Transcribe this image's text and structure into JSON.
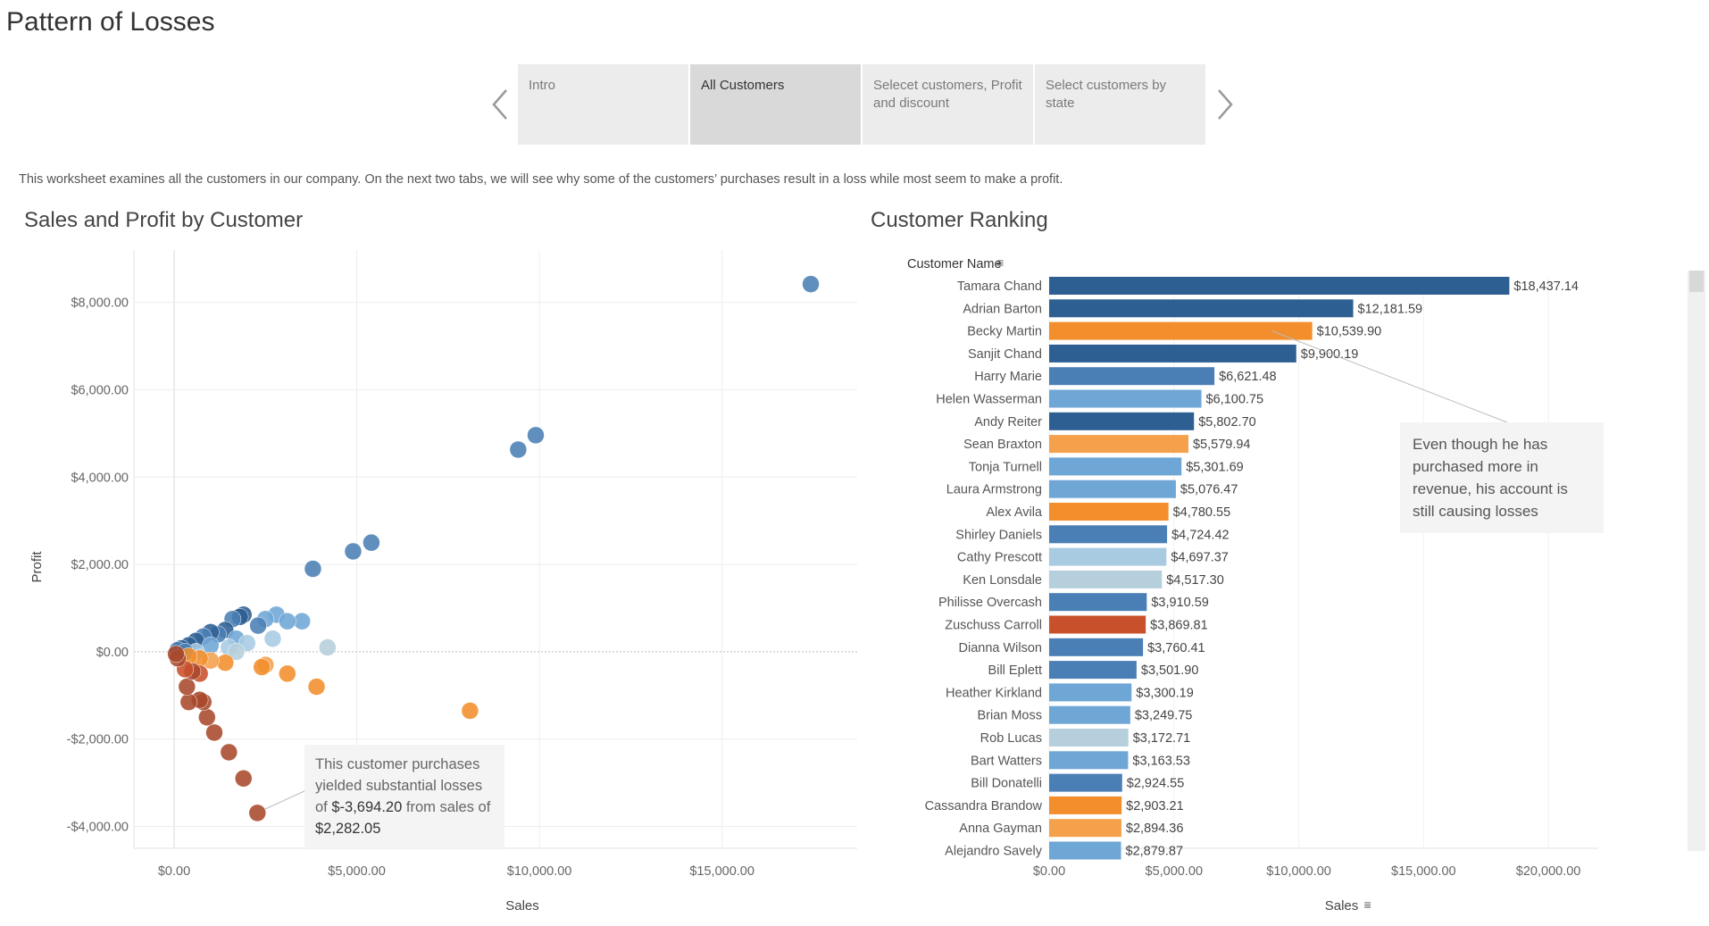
{
  "page": {
    "title": "Pattern of Losses",
    "description": "This worksheet examines all the customers in our company. On the next two tabs, we will see why some of the customers’ purchases result in a loss while most seem to make a profit."
  },
  "story": {
    "tabs": [
      {
        "label": "Intro"
      },
      {
        "label": "All Customers"
      },
      {
        "label": "Selecet customers, Profit and discount"
      },
      {
        "label": "Select customers by state"
      }
    ],
    "active_index": 1
  },
  "colors": {
    "blue_dark": "#2d5f93",
    "blue_mid": "#4a7fb5",
    "blue_light": "#6ea6d6",
    "blue_pale": "#a8cbe2",
    "grey_blue": "#b5cfdc",
    "orange": "#f28e2b",
    "orange_light": "#f5a04a",
    "red_orange": "#c8502a",
    "brown": "#a9492c"
  },
  "chart_data": [
    {
      "type": "scatter",
      "title": "Sales and Profit by Customer",
      "xlabel": "Sales",
      "ylabel": "Profit",
      "xlim": [
        -1100,
        18700
      ],
      "ylim": [
        -4500,
        9200
      ],
      "xticks": [
        {
          "value": 0,
          "label": "$0.00"
        },
        {
          "value": 5000,
          "label": "$5,000.00"
        },
        {
          "value": 10000,
          "label": "$10,000.00"
        },
        {
          "value": 15000,
          "label": "$15,000.00"
        }
      ],
      "yticks": [
        {
          "value": 8000,
          "label": "$8,000.00"
        },
        {
          "value": 6000,
          "label": "$6,000.00"
        },
        {
          "value": 4000,
          "label": "$4,000.00"
        },
        {
          "value": 2000,
          "label": "$2,000.00"
        },
        {
          "value": 0,
          "label": "$0.00"
        },
        {
          "value": -2000,
          "label": "-$2,000.00"
        },
        {
          "value": -4000,
          "label": "-$4,000.00"
        }
      ],
      "points": [
        {
          "x": 17430,
          "y": 8420,
          "color": "blue_mid"
        },
        {
          "x": 9900,
          "y": 4960,
          "color": "blue_mid"
        },
        {
          "x": 9420,
          "y": 4630,
          "color": "blue_mid"
        },
        {
          "x": 5400,
          "y": 2500,
          "color": "blue_mid"
        },
        {
          "x": 4900,
          "y": 2300,
          "color": "blue_mid"
        },
        {
          "x": 3800,
          "y": 1900,
          "color": "blue_mid"
        },
        {
          "x": 4200,
          "y": 100,
          "color": "grey_blue"
        },
        {
          "x": 3500,
          "y": 700,
          "color": "blue_light"
        },
        {
          "x": 2800,
          "y": 850,
          "color": "blue_light"
        },
        {
          "x": 2500,
          "y": 750,
          "color": "blue_light"
        },
        {
          "x": 3100,
          "y": 700,
          "color": "blue_light"
        },
        {
          "x": 2700,
          "y": 300,
          "color": "blue_pale"
        },
        {
          "x": 2300,
          "y": 600,
          "color": "blue_mid"
        },
        {
          "x": 1900,
          "y": 850,
          "color": "blue_dark"
        },
        {
          "x": 1800,
          "y": 800,
          "color": "blue_dark"
        },
        {
          "x": 1600,
          "y": 750,
          "color": "blue_mid"
        },
        {
          "x": 1400,
          "y": 500,
          "color": "blue_dark"
        },
        {
          "x": 1200,
          "y": 400,
          "color": "blue_mid"
        },
        {
          "x": 1000,
          "y": 450,
          "color": "blue_dark"
        },
        {
          "x": 800,
          "y": 350,
          "color": "blue_mid"
        },
        {
          "x": 600,
          "y": 250,
          "color": "blue_dark"
        },
        {
          "x": 400,
          "y": 150,
          "color": "blue_dark"
        },
        {
          "x": 200,
          "y": 80,
          "color": "blue_dark"
        },
        {
          "x": 100,
          "y": 40,
          "color": "blue_mid"
        },
        {
          "x": 1700,
          "y": 300,
          "color": "blue_light"
        },
        {
          "x": 2000,
          "y": 200,
          "color": "blue_pale"
        },
        {
          "x": 1500,
          "y": 100,
          "color": "blue_pale"
        },
        {
          "x": 1000,
          "y": 150,
          "color": "blue_light"
        },
        {
          "x": 1700,
          "y": 0,
          "color": "grey_blue"
        },
        {
          "x": 600,
          "y": 0,
          "color": "blue_pale"
        },
        {
          "x": 300,
          "y": 0,
          "color": "blue_mid"
        },
        {
          "x": 3900,
          "y": -800,
          "color": "orange"
        },
        {
          "x": 8100,
          "y": -1350,
          "color": "orange"
        },
        {
          "x": 3100,
          "y": -500,
          "color": "orange"
        },
        {
          "x": 2500,
          "y": -300,
          "color": "orange_light"
        },
        {
          "x": 2400,
          "y": -350,
          "color": "orange"
        },
        {
          "x": 1400,
          "y": -250,
          "color": "orange"
        },
        {
          "x": 1000,
          "y": -200,
          "color": "orange_light"
        },
        {
          "x": 700,
          "y": -150,
          "color": "orange"
        },
        {
          "x": 400,
          "y": -100,
          "color": "orange"
        },
        {
          "x": 2280,
          "y": -3690,
          "color": "brown"
        },
        {
          "x": 1900,
          "y": -2900,
          "color": "brown"
        },
        {
          "x": 1500,
          "y": -2300,
          "color": "brown"
        },
        {
          "x": 1100,
          "y": -1850,
          "color": "brown"
        },
        {
          "x": 900,
          "y": -1500,
          "color": "brown"
        },
        {
          "x": 800,
          "y": -1150,
          "color": "brown"
        },
        {
          "x": 700,
          "y": -1100,
          "color": "brown"
        },
        {
          "x": 400,
          "y": -1150,
          "color": "brown"
        },
        {
          "x": 350,
          "y": -800,
          "color": "brown"
        },
        {
          "x": 700,
          "y": -500,
          "color": "red_orange"
        },
        {
          "x": 500,
          "y": -450,
          "color": "brown"
        },
        {
          "x": 300,
          "y": -400,
          "color": "red_orange"
        },
        {
          "x": 100,
          "y": -150,
          "color": "brown"
        },
        {
          "x": 50,
          "y": -50,
          "color": "brown"
        }
      ],
      "annotation": {
        "text": "This customer purchases yielded substantial losses of",
        "value_profit": "$-3,694.20",
        "middle": "from sales of",
        "value_sales": "$2,282.05"
      }
    },
    {
      "type": "bar",
      "orientation": "horizontal",
      "title": "Customer Ranking",
      "category_label": "Customer Name",
      "xlabel": "Sales",
      "xlim": [
        0,
        22000
      ],
      "xticks": [
        {
          "value": 0,
          "label": "$0.00"
        },
        {
          "value": 5000,
          "label": "$5,000.00"
        },
        {
          "value": 10000,
          "label": "$10,000.00"
        },
        {
          "value": 15000,
          "label": "$15,000.00"
        },
        {
          "value": 20000,
          "label": "$20,000.00"
        }
      ],
      "bars": [
        {
          "name": "Tamara Chand",
          "value": 18437.14,
          "label": "$18,437.14",
          "color": "blue_dark"
        },
        {
          "name": "Adrian Barton",
          "value": 12181.59,
          "label": "$12,181.59",
          "color": "blue_dark"
        },
        {
          "name": "Becky Martin",
          "value": 10539.9,
          "label": "$10,539.90",
          "color": "orange"
        },
        {
          "name": "Sanjit Chand",
          "value": 9900.19,
          "label": "$9,900.19",
          "color": "blue_dark"
        },
        {
          "name": "Harry Marie",
          "value": 6621.48,
          "label": "$6,621.48",
          "color": "blue_mid"
        },
        {
          "name": "Helen Wasserman",
          "value": 6100.75,
          "label": "$6,100.75",
          "color": "blue_light"
        },
        {
          "name": "Andy Reiter",
          "value": 5802.7,
          "label": "$5,802.70",
          "color": "blue_dark"
        },
        {
          "name": "Sean Braxton",
          "value": 5579.94,
          "label": "$5,579.94",
          "color": "orange_light"
        },
        {
          "name": "Tonja Turnell",
          "value": 5301.69,
          "label": "$5,301.69",
          "color": "blue_light"
        },
        {
          "name": "Laura Armstrong",
          "value": 5076.47,
          "label": "$5,076.47",
          "color": "blue_light"
        },
        {
          "name": "Alex Avila",
          "value": 4780.55,
          "label": "$4,780.55",
          "color": "orange"
        },
        {
          "name": "Shirley Daniels",
          "value": 4724.42,
          "label": "$4,724.42",
          "color": "blue_mid"
        },
        {
          "name": "Cathy Prescott",
          "value": 4697.37,
          "label": "$4,697.37",
          "color": "blue_pale"
        },
        {
          "name": "Ken Lonsdale",
          "value": 4517.3,
          "label": "$4,517.30",
          "color": "grey_blue"
        },
        {
          "name": "Philisse Overcash",
          "value": 3910.59,
          "label": "$3,910.59",
          "color": "blue_mid"
        },
        {
          "name": "Zuschuss Carroll",
          "value": 3869.81,
          "label": "$3,869.81",
          "color": "red_orange"
        },
        {
          "name": "Dianna Wilson",
          "value": 3760.41,
          "label": "$3,760.41",
          "color": "blue_mid"
        },
        {
          "name": "Bill Eplett",
          "value": 3501.9,
          "label": "$3,501.90",
          "color": "blue_mid"
        },
        {
          "name": "Heather Kirkland",
          "value": 3300.19,
          "label": "$3,300.19",
          "color": "blue_light"
        },
        {
          "name": "Brian Moss",
          "value": 3249.75,
          "label": "$3,249.75",
          "color": "blue_light"
        },
        {
          "name": "Rob Lucas",
          "value": 3172.71,
          "label": "$3,172.71",
          "color": "grey_blue"
        },
        {
          "name": "Bart Watters",
          "value": 3163.53,
          "label": "$3,163.53",
          "color": "blue_light"
        },
        {
          "name": "Bill Donatelli",
          "value": 2924.55,
          "label": "$2,924.55",
          "color": "blue_mid"
        },
        {
          "name": "Cassandra Brandow",
          "value": 2903.21,
          "label": "$2,903.21",
          "color": "orange"
        },
        {
          "name": "Anna Gayman",
          "value": 2894.36,
          "label": "$2,894.36",
          "color": "orange_light"
        },
        {
          "name": "Alejandro Savely",
          "value": 2879.87,
          "label": "$2,879.87",
          "color": "blue_light"
        }
      ],
      "annotation": {
        "text": "Even though he has purchased more in revenue, his account is still causing losses"
      }
    }
  ]
}
